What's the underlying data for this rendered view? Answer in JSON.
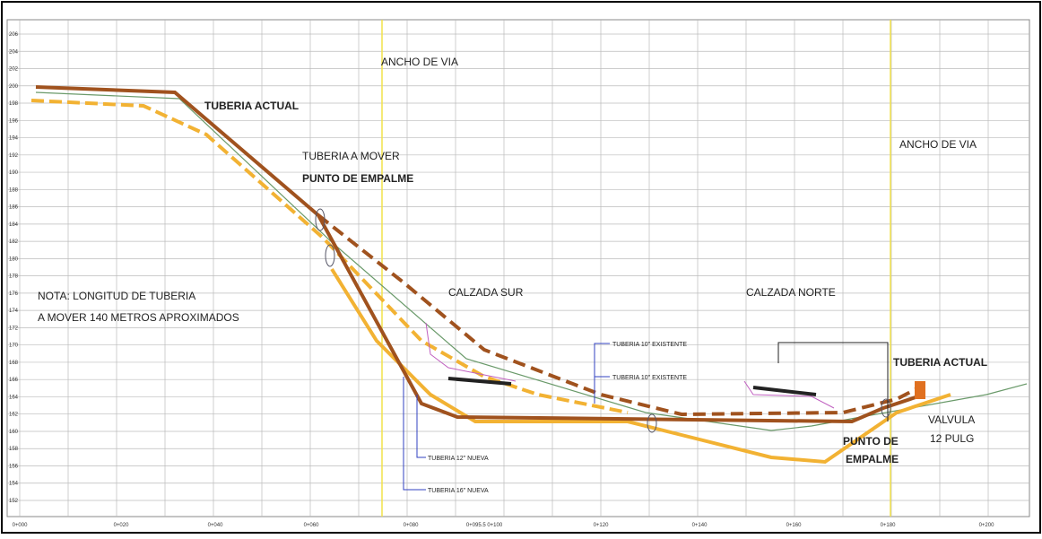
{
  "labels": {
    "ancho_via_1": "ANCHO DE VIA",
    "ancho_via_2": "ANCHO DE VIA",
    "tuberia_actual_1": "TUBERIA ACTUAL",
    "tuberia_actual_2": "TUBERIA ACTUAL",
    "tuberia_mover": "TUBERIA A MOVER",
    "punto_empalme_1": "PUNTO DE EMPALME",
    "punto_empalme_2a": "PUNTO DE",
    "punto_empalme_2b": "EMPALME",
    "nota_1": "NOTA: LONGITUD DE TUBERIA",
    "nota_2": "A MOVER 140 METROS APROXIMADOS",
    "calzada_sur": "CALZADA SUR",
    "calzada_norte": "CALZADA NORTE",
    "existente_1": "TUBERIA 10\" EXISTENTE",
    "existente_2": "TUBERIA 10\" EXISTENTE",
    "nueva_12": "TUBERIA 12\" NUEVA",
    "nueva_16": "TUBERIA 16\" NUEVA",
    "valvula_1": "VALVULA",
    "valvula_2": "12 PULG"
  },
  "y_axis": [
    "206",
    "204",
    "202",
    "200",
    "198",
    "196",
    "194",
    "192",
    "190",
    "188",
    "186",
    "184",
    "182",
    "180",
    "178",
    "176",
    "174",
    "172",
    "170",
    "168",
    "166",
    "164",
    "162",
    "160",
    "158",
    "156",
    "154",
    "152"
  ],
  "x_axis": [
    "0+000",
    "0+020",
    "0+040",
    "0+060",
    "0+080",
    "0+095.5 0+100",
    "0+120",
    "0+140",
    "0+160",
    "0+180",
    "0+200"
  ]
}
